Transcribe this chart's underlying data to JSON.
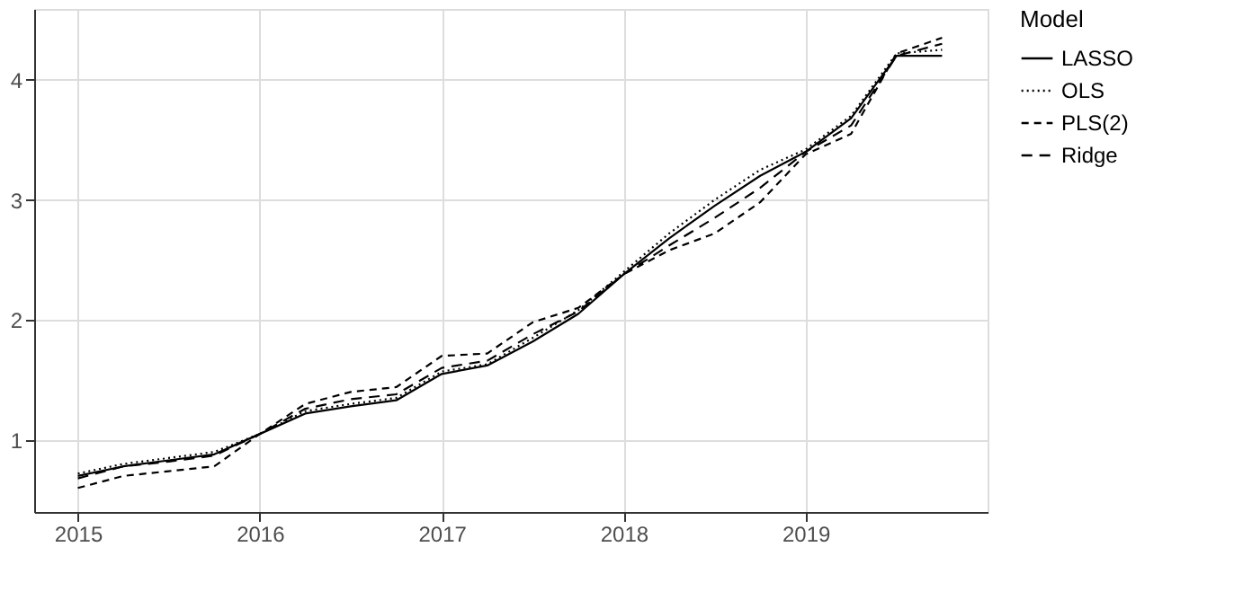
{
  "chart_data": {
    "type": "line",
    "legend_title": "Model",
    "legend": "right",
    "grid": true,
    "x": [
      2015,
      2015.25,
      2015.5,
      2015.75,
      2016,
      2016.25,
      2016.5,
      2016.75,
      2017,
      2017.25,
      2017.5,
      2017.75,
      2018,
      2018.25,
      2018.5,
      2018.75,
      2019,
      2019.25,
      2019.5,
      2019.75
    ],
    "xlim": [
      2014.76,
      2020.0
    ],
    "xticks": [
      2015,
      2016,
      2017,
      2018,
      2019
    ],
    "ylim": [
      0.4,
      4.59
    ],
    "yticks": [
      1,
      2,
      3,
      4
    ],
    "series": [
      {
        "name": "LASSO",
        "color": "#000000",
        "line_style": "solid",
        "values": [
          0.7,
          0.78,
          0.83,
          0.88,
          1.05,
          1.22,
          1.28,
          1.33,
          1.55,
          1.62,
          1.82,
          2.05,
          2.38,
          2.68,
          2.95,
          3.2,
          3.4,
          3.68,
          4.2,
          4.2
        ]
      },
      {
        "name": "OLS",
        "color": "#000000",
        "line_style": "dotted",
        "values": [
          0.72,
          0.8,
          0.85,
          0.9,
          1.05,
          1.24,
          1.3,
          1.35,
          1.57,
          1.63,
          1.85,
          2.08,
          2.4,
          2.72,
          3.0,
          3.25,
          3.42,
          3.7,
          4.22,
          4.25
        ]
      },
      {
        "name": "PLS(2)",
        "color": "#000000",
        "line_style": "dashed",
        "values": [
          0.6,
          0.7,
          0.74,
          0.78,
          1.05,
          1.3,
          1.4,
          1.44,
          1.7,
          1.72,
          1.98,
          2.1,
          2.38,
          2.58,
          2.72,
          2.98,
          3.38,
          3.55,
          4.22,
          4.35
        ]
      },
      {
        "name": "Ridge",
        "color": "#000000",
        "line_style": "dashed",
        "values": [
          0.68,
          0.78,
          0.82,
          0.87,
          1.05,
          1.26,
          1.34,
          1.38,
          1.6,
          1.66,
          1.88,
          2.07,
          2.38,
          2.62,
          2.85,
          3.1,
          3.4,
          3.62,
          4.2,
          4.3
        ]
      }
    ]
  }
}
